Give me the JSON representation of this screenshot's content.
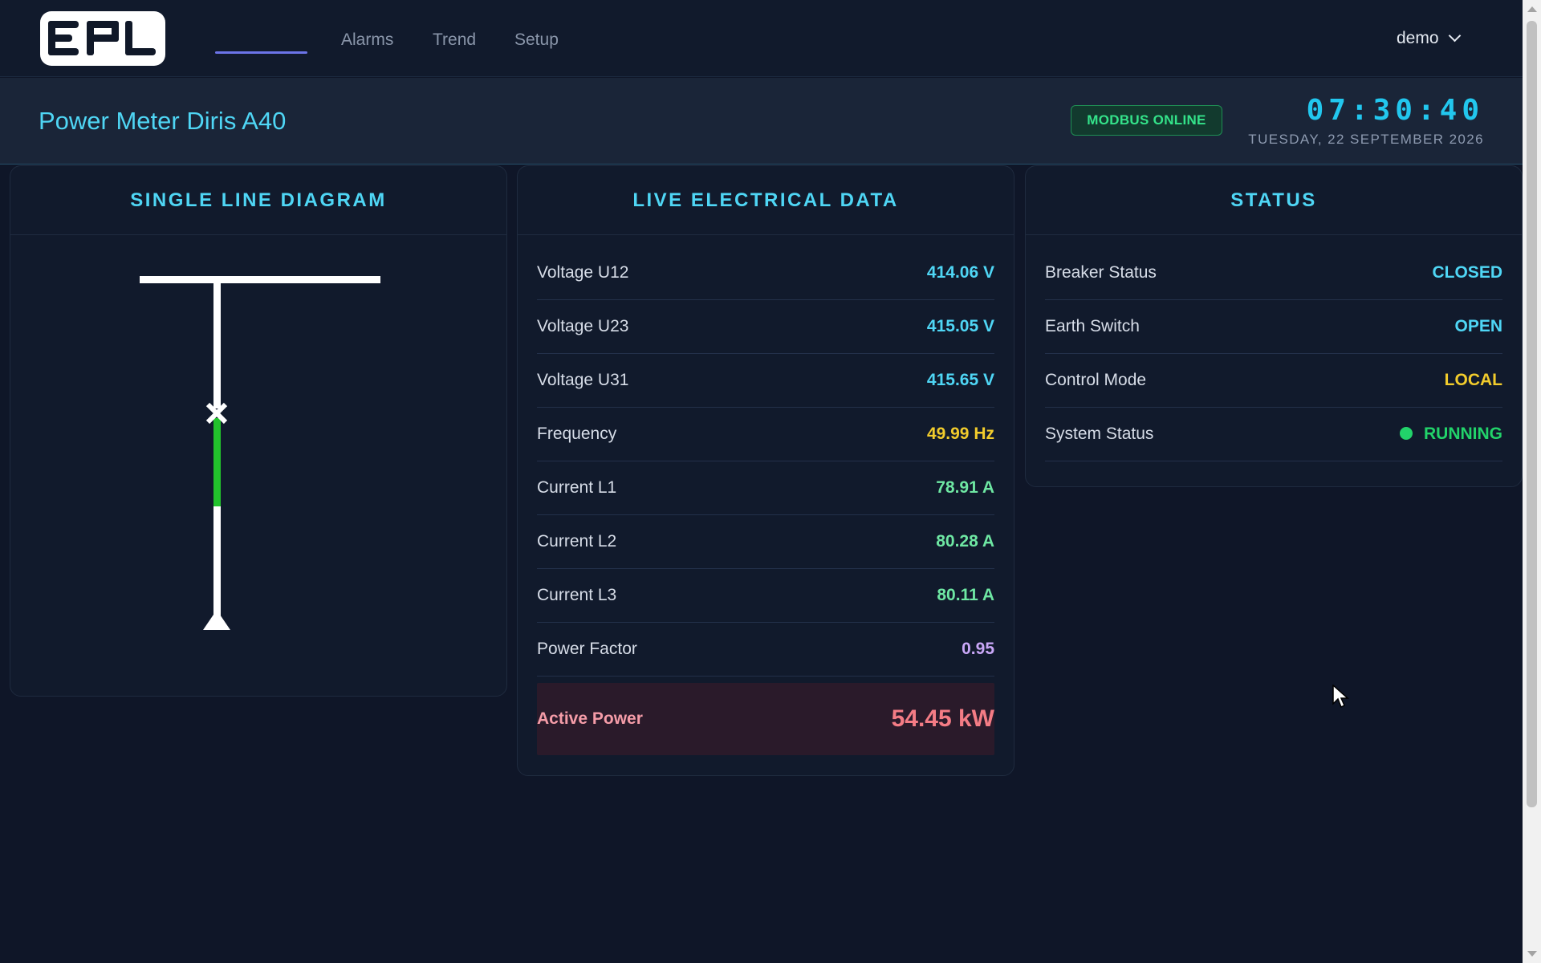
{
  "nav": {
    "logo_text": "EPL",
    "links": [
      "Alarms",
      "Trend",
      "Setup"
    ],
    "user": "demo"
  },
  "header": {
    "title": "Power Meter Diris A40",
    "badge": "MODBUS ONLINE",
    "clock": "07:30:40",
    "date": "TUESDAY, 22 SEPTEMBER 2026"
  },
  "panels": {
    "diagram": {
      "title": "SINGLE LINE DIAGRAM"
    },
    "live": {
      "title": "LIVE ELECTRICAL DATA",
      "rows": [
        {
          "label": "Voltage U12",
          "value": "414.06 V",
          "color": "#4fd6f5"
        },
        {
          "label": "Voltage U23",
          "value": "415.05 V",
          "color": "#4fd6f5"
        },
        {
          "label": "Voltage U31",
          "value": "415.65 V",
          "color": "#4fd6f5"
        },
        {
          "label": "Frequency",
          "value": "49.99 Hz",
          "color": "#f2cc2c"
        },
        {
          "label": "Current L1",
          "value": "78.91 A",
          "color": "#6ee7a3"
        },
        {
          "label": "Current L2",
          "value": "80.28 A",
          "color": "#6ee7a3"
        },
        {
          "label": "Current L3",
          "value": "80.11 A",
          "color": "#6ee7a3"
        },
        {
          "label": "Power Factor",
          "value": "0.95",
          "color": "#c9a7f7"
        }
      ],
      "active_power": {
        "label": "Active Power",
        "value": "54.45 kW"
      }
    },
    "status": {
      "title": "STATUS",
      "rows": [
        {
          "label": "Breaker Status",
          "value": "CLOSED",
          "color": "#4fd6f5"
        },
        {
          "label": "Earth Switch",
          "value": "OPEN",
          "color": "#4fd6f5"
        },
        {
          "label": "Control Mode",
          "value": "LOCAL",
          "color": "#f2cc2c"
        },
        {
          "label": "System Status",
          "value": "RUNNING",
          "color": "#22d36a"
        }
      ]
    }
  },
  "colors": {
    "accent": "#4fd6f5",
    "breaker_closed": "#22c32c",
    "online": "#34e38a"
  }
}
